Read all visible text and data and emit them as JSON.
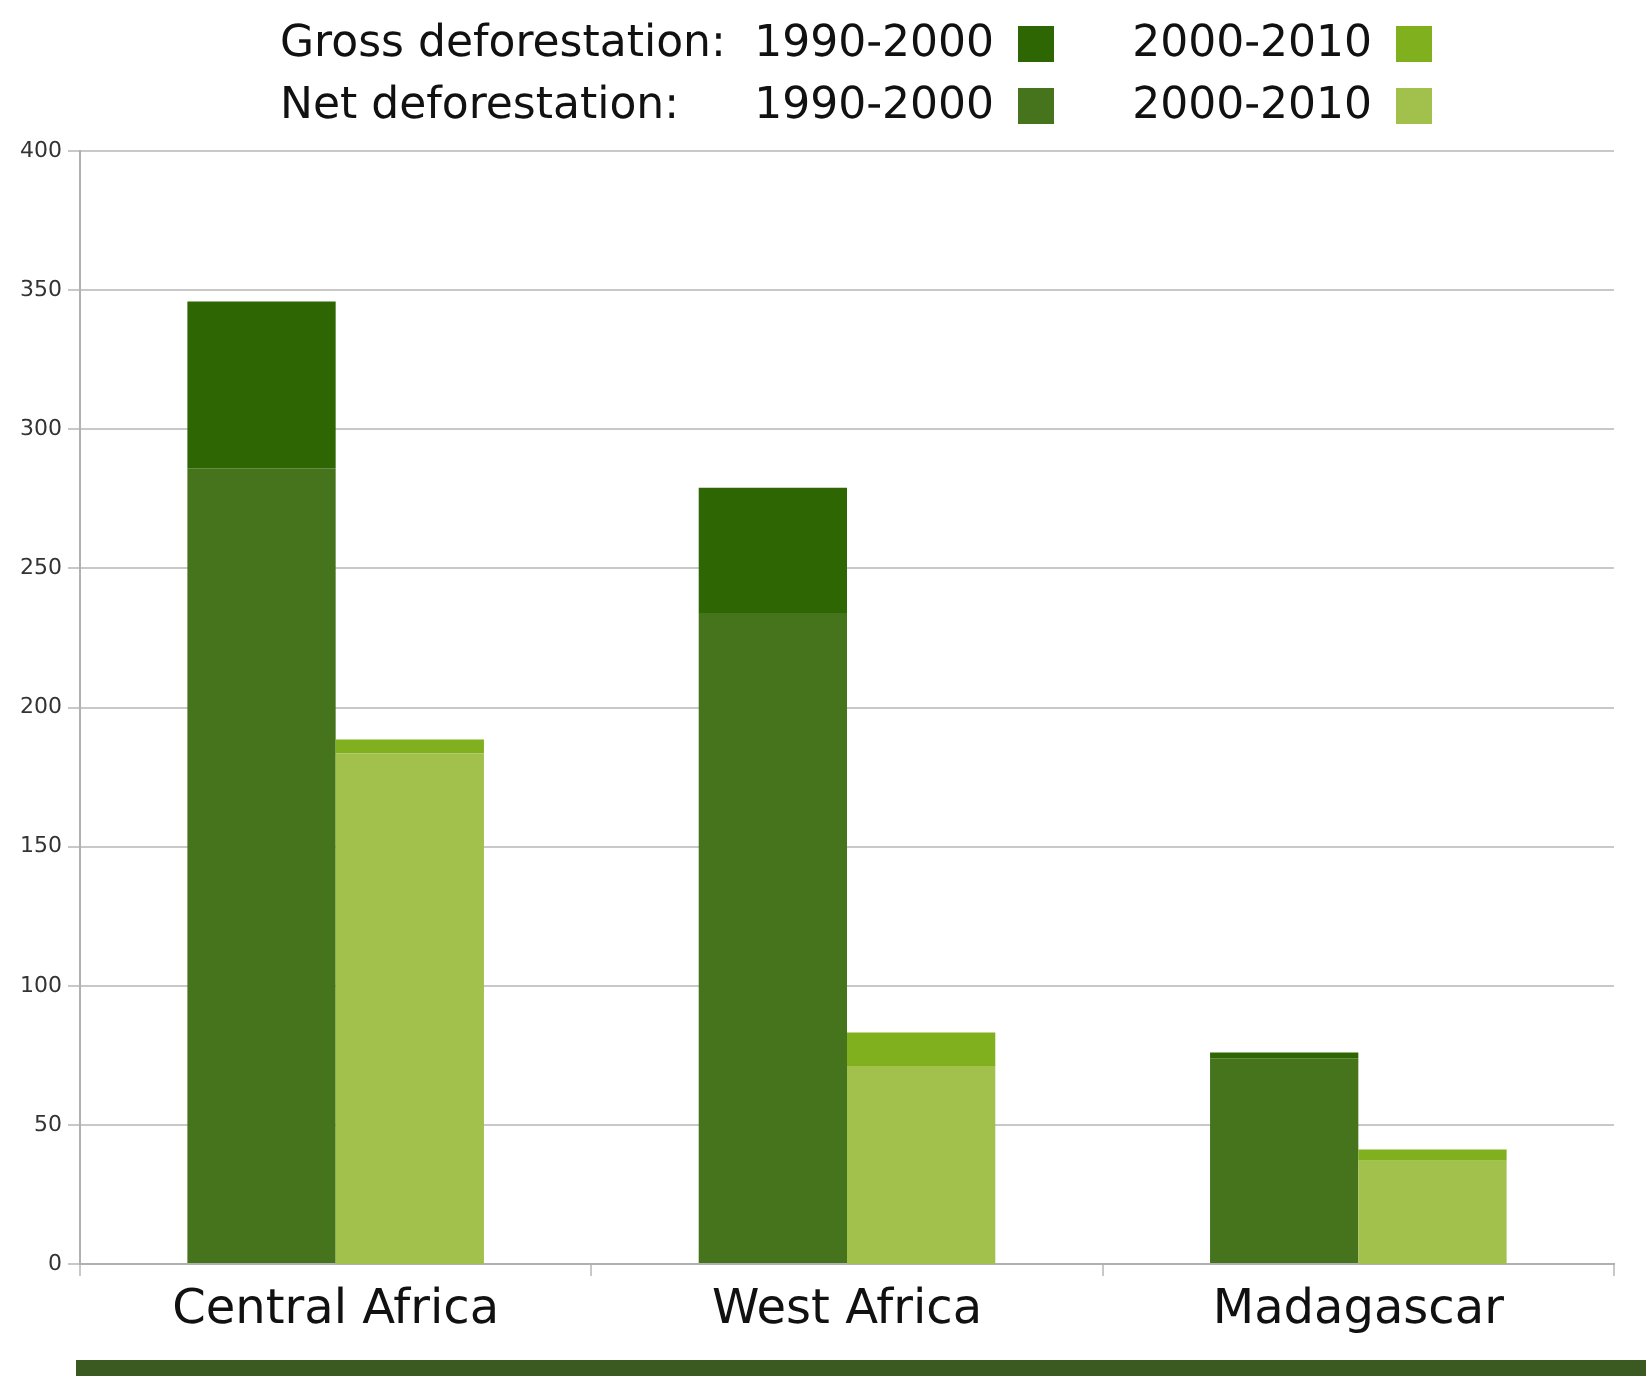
{
  "chart_data": [
    {
      "type": "bar",
      "stacked": true,
      "categories": [
        "Central Africa",
        "West Africa",
        "Madagascar"
      ],
      "series": [
        {
          "name": "1990-2000",
          "color": "#45741c",
          "values": [
            286,
            234,
            74
          ]
        },
        {
          "name": "1990-2000",
          "color": "#2e6604",
          "values": [
            60,
            45,
            2
          ]
        }
      ],
      "annotations": [
        "Gross deforestation:",
        "Net deforestation:"
      ],
      "ylim": [
        0,
        400
      ],
      "yticks": [
        0,
        50,
        100,
        150,
        200,
        250,
        300,
        350,
        400
      ],
      "grid": "y",
      "legend": "top"
    },
    {
      "type": "bar",
      "stacked": true,
      "series": [
        {
          "name": "2000-2010",
          "color": "#a2c14c",
          "values": [
            183,
            71,
            37
          ]
        },
        {
          "name": "2000-2010",
          "color": "#80b01d",
          "values": [
            5,
            12,
            4
          ]
        }
      ],
      "ylim": [
        0,
        400
      ],
      "yticks": [
        0,
        50,
        100,
        150,
        200,
        250,
        300,
        350,
        400
      ],
      "tick_labels": false,
      "legend": "top"
    }
  ]
}
